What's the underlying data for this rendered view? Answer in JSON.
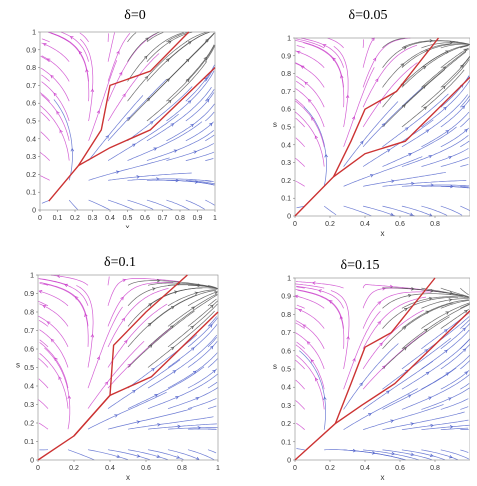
{
  "chart_data": [
    {
      "type": "line",
      "chart_kind": "stream plot (phase portrait)",
      "title": "δ=0",
      "xlabel": "x",
      "ylabel": "",
      "xlim": [
        0,
        1
      ],
      "ylim": [
        0,
        1
      ],
      "x_ticks": [
        "0",
        "0.1",
        "0.2",
        "0.3",
        "0.4",
        "0.5",
        "0.6",
        "0.7",
        "0.8",
        "0.9",
        "1"
      ],
      "y_ticks": [
        "0",
        "0.1",
        "0.2",
        "0.3",
        "0.4",
        "0.5",
        "0.6",
        "0.7",
        "0.8",
        "0.9",
        "1"
      ],
      "grid": false,
      "streamline_colors": [
        "#cc44cc",
        "#555555",
        "#5566cc"
      ],
      "series": [
        {
          "role": "separatrix",
          "color": "#cc3333",
          "x": [
            0.05,
            0.22,
            0.4,
            0.63,
            1.0
          ],
          "y": [
            0.05,
            0.25,
            0.35,
            0.45,
            0.8
          ]
        },
        {
          "role": "separatrix",
          "color": "#cc3333",
          "x": [
            0.22,
            0.35,
            0.4,
            0.63,
            0.85
          ],
          "y": [
            0.25,
            0.45,
            0.7,
            0.78,
            1.0
          ]
        }
      ]
    },
    {
      "type": "line",
      "chart_kind": "stream plot (phase portrait)",
      "title": "δ=0.05",
      "xlabel": "x",
      "ylabel": "s",
      "xlim": [
        0,
        1
      ],
      "ylim": [
        0,
        1
      ],
      "x_ticks": [
        "0",
        "0.2",
        "0.4",
        "0.6",
        "0.8"
      ],
      "y_ticks": [
        "0",
        "0.1",
        "0.2",
        "0.3",
        "0.4",
        "0.5",
        "0.6",
        "0.7",
        "0.8",
        "0.9",
        "1"
      ],
      "grid": false,
      "streamline_colors": [
        "#cc44cc",
        "#555555",
        "#5566cc"
      ],
      "series": [
        {
          "role": "separatrix",
          "color": "#cc3333",
          "x": [
            0.0,
            0.22,
            0.4,
            0.63,
            1.0
          ],
          "y": [
            0.0,
            0.22,
            0.35,
            0.42,
            0.78
          ]
        },
        {
          "role": "separatrix",
          "color": "#cc3333",
          "x": [
            0.22,
            0.32,
            0.4,
            0.58,
            0.82
          ],
          "y": [
            0.22,
            0.42,
            0.6,
            0.7,
            1.0
          ]
        }
      ]
    },
    {
      "type": "line",
      "chart_kind": "stream plot (phase portrait)",
      "title": "δ=0.1",
      "xlabel": "x",
      "ylabel": "s",
      "xlim": [
        0,
        1
      ],
      "ylim": [
        0,
        1
      ],
      "x_ticks": [
        "0",
        "0.2",
        "0.4",
        "0.6",
        "0.8",
        "1"
      ],
      "y_ticks": [
        "0",
        "0.1",
        "0.2",
        "0.3",
        "0.4",
        "0.5",
        "0.6",
        "0.7",
        "0.8",
        "0.9",
        "1"
      ],
      "grid": false,
      "streamline_colors": [
        "#cc44cc",
        "#555555",
        "#5566cc"
      ],
      "series": [
        {
          "role": "separatrix",
          "color": "#cc3333",
          "x": [
            0.0,
            0.2,
            0.4,
            0.63,
            1.0
          ],
          "y": [
            0.0,
            0.13,
            0.35,
            0.45,
            0.8
          ]
        },
        {
          "role": "separatrix",
          "color": "#cc3333",
          "x": [
            0.2,
            0.4,
            0.42,
            0.6,
            0.83
          ],
          "y": [
            0.13,
            0.35,
            0.62,
            0.8,
            1.0
          ]
        }
      ]
    },
    {
      "type": "line",
      "chart_kind": "stream plot (phase portrait)",
      "title": "δ=0.15",
      "xlabel": "x",
      "ylabel": "s",
      "xlim": [
        0,
        1
      ],
      "ylim": [
        0,
        1
      ],
      "x_ticks": [
        "0",
        "0.2",
        "0.4",
        "0.6",
        "0.8"
      ],
      "y_ticks": [
        "0",
        "0.1",
        "0.2",
        "0.3",
        "0.4",
        "0.5",
        "0.6",
        "0.7",
        "0.8",
        "0.9",
        "1"
      ],
      "grid": false,
      "streamline_colors": [
        "#cc44cc",
        "#555555",
        "#5566cc"
      ],
      "series": [
        {
          "role": "separatrix",
          "color": "#cc3333",
          "x": [
            0.0,
            0.23,
            0.38,
            0.57,
            1.0
          ],
          "y": [
            0.0,
            0.2,
            0.3,
            0.42,
            0.82
          ]
        },
        {
          "role": "separatrix",
          "color": "#cc3333",
          "x": [
            0.23,
            0.32,
            0.4,
            0.55,
            0.8
          ],
          "y": [
            0.2,
            0.42,
            0.62,
            0.7,
            1.0
          ]
        }
      ]
    }
  ]
}
